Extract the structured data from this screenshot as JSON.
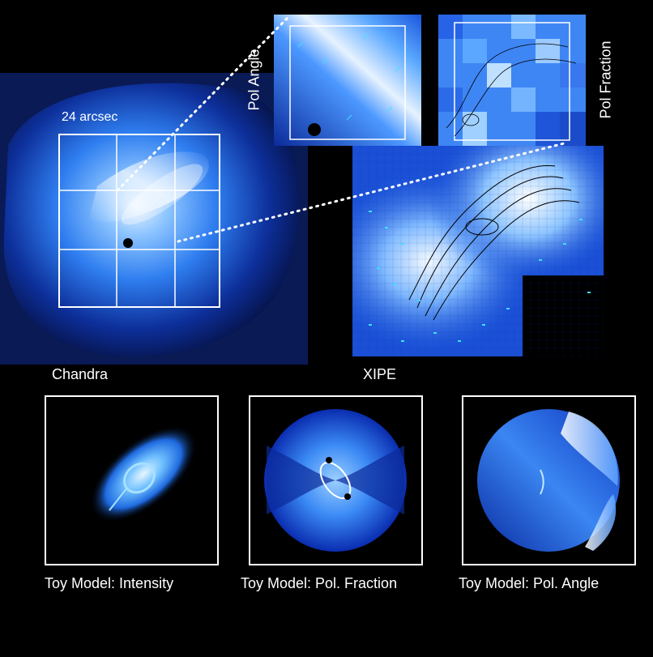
{
  "chandra": {
    "label": "Chandra",
    "scale_label": "24 arcsec"
  },
  "xipe": {
    "label": "XIPE"
  },
  "insets": {
    "pol_angle_label": "Pol Angle",
    "pol_fraction_label": "Pol Fraction"
  },
  "toy_models": [
    {
      "caption": "Toy Model: Intensity"
    },
    {
      "caption": "Toy Model: Pol. Fraction"
    },
    {
      "caption": "Toy Model: Pol. Angle"
    }
  ],
  "colors": {
    "background": "#000000",
    "frame": "#ffffff",
    "nebula_core": "#e6f2ff",
    "nebula_mid": "#3a8fff",
    "nebula_edge": "#0a1f6e",
    "pol_vectors": "#40e0ff"
  }
}
